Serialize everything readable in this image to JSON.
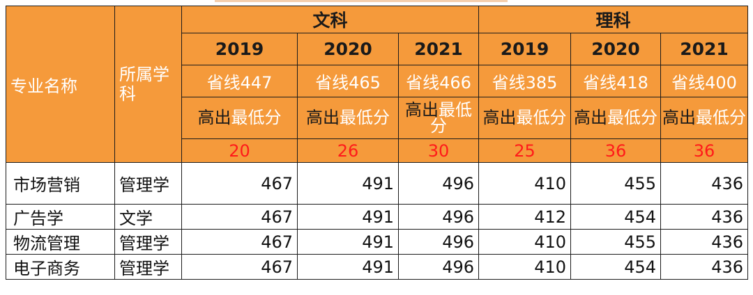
{
  "header": {
    "major_label": "专业名称",
    "subject_label": "所属学科",
    "groups": [
      {
        "label": "文科"
      },
      {
        "label": "理科"
      }
    ],
    "years": [
      "2019",
      "2020",
      "2021",
      "2019",
      "2020",
      "2021"
    ],
    "province_lines": [
      "省线447",
      "省线465",
      "省线466",
      "省线385",
      "省线418",
      "省线400"
    ],
    "above_prefix": "高出",
    "above_suffix": "最低分",
    "diffs": [
      "20",
      "26",
      "30",
      "25",
      "36",
      "36"
    ]
  },
  "rows": [
    {
      "major": "市场营销",
      "subject": "管理学",
      "scores": [
        "467",
        "491",
        "496",
        "410",
        "455",
        "436"
      ]
    },
    {
      "major": "广告学",
      "subject": "文学",
      "scores": [
        "467",
        "491",
        "496",
        "412",
        "454",
        "436"
      ]
    },
    {
      "major": "物流管理",
      "subject": "管理学",
      "scores": [
        "467",
        "491",
        "496",
        "410",
        "455",
        "436"
      ]
    },
    {
      "major": "电子商务",
      "subject": "管理学",
      "scores": [
        "467",
        "491",
        "496",
        "410",
        "454",
        "436"
      ]
    }
  ],
  "colors": {
    "header_orange": "#f59a3b",
    "diff_red": "#ff1a1a"
  }
}
